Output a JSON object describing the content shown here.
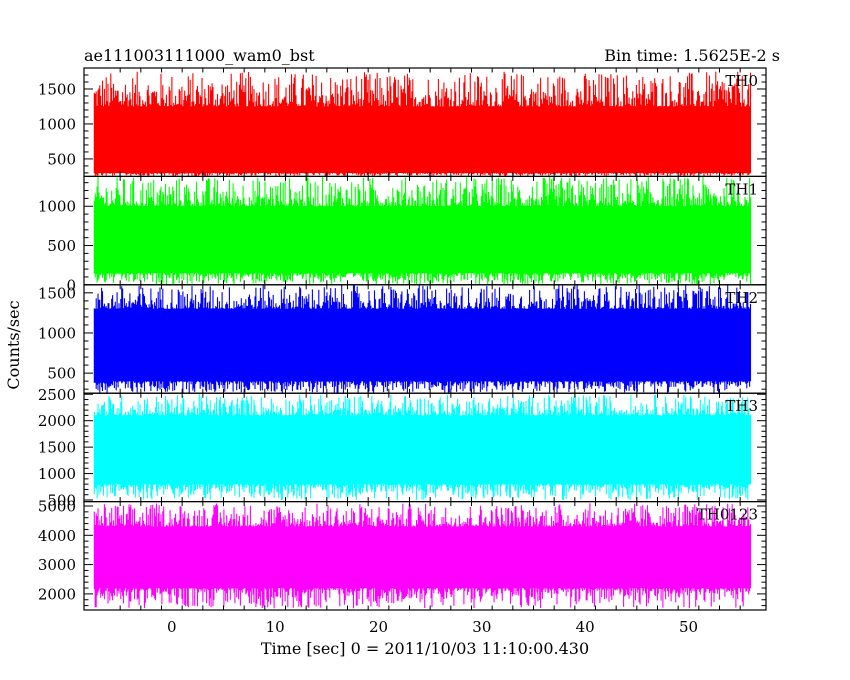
{
  "header": {
    "left": "ae111003111000_wam0_bst",
    "right": "Bin time: 1.5625E-2 s"
  },
  "chart_data": {
    "type": "line",
    "ylabel": "Counts/sec",
    "xlabel": "Time [sec] 0 = 2011/10/03 11:10:00.430",
    "xlim": [
      -8.5,
      57.5
    ],
    "x_data_range": [
      -7.5,
      56
    ],
    "x_ticks": [
      0,
      10,
      20,
      30,
      40,
      50
    ],
    "bin_time_s": 0.015625,
    "panels": [
      {
        "label": "TH0",
        "color": "#ff0000",
        "ylim": [
          250,
          1800
        ],
        "yticks": [
          500,
          1000,
          1500
        ],
        "band": {
          "low": 300,
          "high": 1250,
          "max": 1750,
          "min": 250,
          "mean": 750
        }
      },
      {
        "label": "TH1",
        "color": "#00ff00",
        "ylim": [
          0,
          1380
        ],
        "yticks": [
          0,
          500,
          1000
        ],
        "band": {
          "low": 150,
          "high": 1000,
          "max": 1380,
          "min": 0,
          "mean": 550
        }
      },
      {
        "label": "TH2",
        "color": "#0000ff",
        "ylim": [
          250,
          1600
        ],
        "yticks": [
          500,
          1000,
          1500
        ],
        "band": {
          "low": 400,
          "high": 1300,
          "max": 1600,
          "min": 250,
          "mean": 800
        }
      },
      {
        "label": "TH3",
        "color": "#00ffff",
        "ylim": [
          470,
          2520
        ],
        "yticks": [
          500,
          1000,
          1500,
          2000,
          2500
        ],
        "band": {
          "low": 800,
          "high": 2100,
          "max": 2500,
          "min": 500,
          "mean": 1350
        }
      },
      {
        "label": "TH0123",
        "color": "#ff00ff",
        "ylim": [
          1450,
          5150
        ],
        "yticks": [
          2000,
          3000,
          4000,
          5000
        ],
        "band": {
          "low": 2200,
          "high": 4300,
          "max": 5100,
          "min": 1500,
          "mean": 3200
        }
      }
    ]
  }
}
